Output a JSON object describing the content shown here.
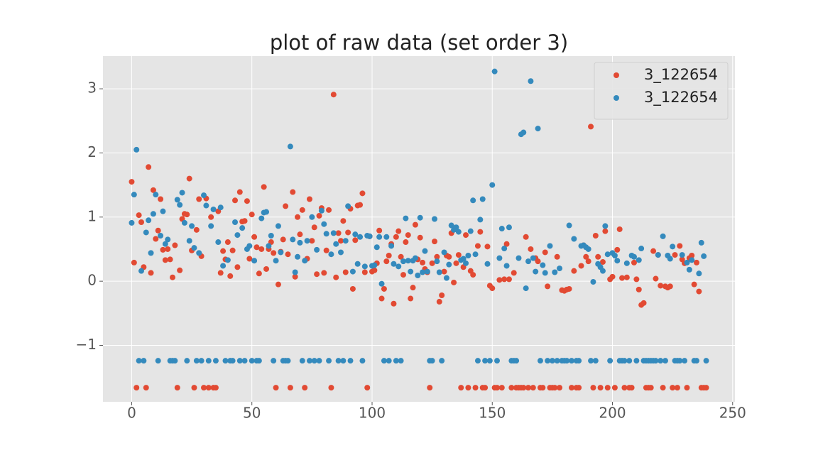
{
  "chart_data": {
    "type": "scatter",
    "title": "plot of raw data (set order 3)",
    "xlim": [
      -11.95,
      250.95
    ],
    "ylim": [
      -1.88,
      3.51
    ],
    "xticks": [
      0,
      50,
      100,
      150,
      200,
      250
    ],
    "yticks": [
      {
        "value": -1,
        "label": "−1"
      },
      0,
      1,
      2,
      3
    ],
    "grid": true,
    "legend_position": "upper right",
    "x": [
      0,
      1,
      2,
      3,
      4,
      5,
      6,
      7,
      8,
      9,
      10,
      11,
      12,
      13,
      14,
      15,
      16,
      17,
      18,
      19,
      20,
      21,
      22,
      23,
      24,
      25,
      26,
      27,
      28,
      29,
      30,
      31,
      32,
      33,
      34,
      35,
      36,
      37,
      38,
      39,
      40,
      41,
      42,
      43,
      44,
      45,
      46,
      47,
      48,
      49,
      50,
      51,
      52,
      53,
      54,
      55,
      56,
      57,
      58,
      59,
      60,
      61,
      62,
      63,
      64,
      65,
      66,
      67,
      68,
      69,
      70,
      71,
      72,
      73,
      74,
      75,
      76,
      77,
      78,
      79,
      80,
      81,
      82,
      83,
      84,
      85,
      86,
      87,
      88,
      89,
      90,
      91,
      92,
      93,
      94,
      95,
      96,
      97,
      98,
      99,
      100,
      101,
      102,
      103,
      104,
      105,
      106,
      107,
      108,
      109,
      110,
      111,
      112,
      113,
      114,
      115,
      116,
      117,
      118,
      119,
      120,
      121,
      122,
      123,
      124,
      125,
      126,
      127,
      128,
      129,
      130,
      131,
      132,
      133,
      134,
      135,
      136,
      137,
      138,
      139,
      140,
      141,
      142,
      143,
      144,
      145,
      146,
      147,
      148,
      149,
      150,
      151,
      152,
      153,
      154,
      155,
      156,
      157,
      158,
      159,
      160,
      161,
      162,
      163,
      164,
      165,
      166,
      167,
      168,
      169,
      170,
      171,
      172,
      173,
      174,
      175,
      176,
      177,
      178,
      179,
      180,
      181,
      182,
      183,
      184,
      185,
      186,
      187,
      188,
      189,
      190,
      191,
      192,
      193,
      194,
      195,
      196,
      197,
      198,
      199,
      200,
      201,
      202,
      203,
      204,
      205,
      206,
      207,
      208,
      209,
      210,
      211,
      212,
      213,
      214,
      215,
      216,
      217,
      218,
      219,
      220,
      221,
      222,
      223,
      224,
      225,
      226,
      227,
      228,
      229,
      230,
      231,
      232,
      233,
      234,
      235,
      236,
      237,
      238,
      239
    ],
    "series": [
      {
        "name": "3_122654",
        "color": "#e24a33",
        "values": [
          1.55,
          0.29,
          -1.66,
          1.03,
          0.92,
          0.22,
          -1.66,
          1.78,
          0.13,
          1.42,
          0.66,
          0.79,
          1.28,
          0.49,
          0.33,
          0.5,
          0.34,
          0.06,
          0.56,
          -1.66,
          0.17,
          0.97,
          1.05,
          1.04,
          1.6,
          0.48,
          -1.66,
          0.8,
          1.28,
          0.39,
          -1.66,
          1.29,
          -1.66,
          1.0,
          -1.66,
          -1.66,
          1.09,
          0.13,
          0.47,
          0.34,
          0.61,
          0.08,
          0.48,
          1.26,
          0.22,
          1.39,
          0.93,
          0.94,
          1.25,
          0.35,
          1.04,
          0.69,
          0.53,
          0.12,
          0.5,
          1.47,
          0.19,
          0.5,
          0.61,
          0.44,
          -1.66,
          -0.05,
          0.46,
          0.65,
          1.17,
          0.42,
          -1.66,
          1.39,
          0.07,
          1.0,
          0.73,
          1.11,
          -1.66,
          0.35,
          1.28,
          0.63,
          0.84,
          0.11,
          1.02,
          1.14,
          0.13,
          0.48,
          1.11,
          -1.66,
          2.91,
          0.06,
          0.75,
          0.63,
          0.94,
          0.14,
          0.76,
          1.13,
          -0.12,
          0.64,
          1.18,
          1.19,
          1.37,
          0.14,
          -1.66,
          0.7,
          0.15,
          0.17,
          0.28,
          0.79,
          -0.27,
          -0.12,
          0.31,
          0.4,
          0.58,
          -0.35,
          0.69,
          0.78,
          0.38,
          0.1,
          0.61,
          0.72,
          -0.27,
          -0.1,
          0.88,
          0.34,
          0.68,
          0.29,
          0.19,
          0.14,
          -1.66,
          0.28,
          0.62,
          0.38,
          -0.32,
          -0.22,
          0.15,
          0.4,
          0.38,
          0.75,
          -0.02,
          0.28,
          0.41,
          -1.66,
          0.22,
          0.72,
          -1.66,
          0.16,
          0.1,
          -1.66,
          0.55,
          0.77,
          -1.66,
          -1.66,
          0.54,
          -0.07,
          -0.11,
          -1.66,
          -1.66,
          0.02,
          -1.66,
          0.03,
          0.58,
          0.03,
          -1.66,
          0.13,
          -1.66,
          -1.66,
          -1.66,
          -1.66,
          0.69,
          -1.66,
          0.5,
          -1.66,
          0.36,
          0.31,
          -1.66,
          -1.66,
          0.45,
          -0.08,
          -1.66,
          -1.66,
          -1.66,
          0.38,
          -1.66,
          -0.14,
          -0.15,
          -0.13,
          -0.12,
          -1.66,
          0.16,
          -1.66,
          -1.66,
          0.24,
          0.56,
          0.38,
          0.31,
          2.41,
          -1.66,
          0.71,
          0.38,
          -1.66,
          0.3,
          0.78,
          -1.66,
          0.03,
          0.07,
          -1.66,
          0.49,
          0.81,
          0.05,
          -1.66,
          0.06,
          -1.66,
          -1.66,
          0.29,
          0.03,
          -0.13,
          -0.37,
          -0.34,
          -1.66,
          -1.66,
          -1.66,
          0.47,
          0.04,
          0.41,
          -0.07,
          -1.66,
          -0.08,
          -0.1,
          -0.08,
          -1.66,
          0.41,
          -1.66,
          0.55,
          0.34,
          0.28,
          -1.66,
          0.36,
          0.4,
          -0.05,
          0.29,
          -0.16,
          -1.66,
          -1.66,
          -1.66
        ]
      },
      {
        "name": "3_122654",
        "color": "#348abd",
        "values": [
          0.91,
          1.35,
          2.05,
          -1.24,
          0.16,
          -1.24,
          0.76,
          0.95,
          0.44,
          1.05,
          1.35,
          -1.24,
          0.71,
          1.09,
          0.58,
          0.65,
          -1.24,
          -1.24,
          -1.24,
          1.27,
          1.19,
          1.38,
          0.91,
          -1.24,
          0.63,
          0.86,
          0.52,
          -1.24,
          0.44,
          -1.24,
          1.34,
          1.18,
          -1.24,
          0.86,
          1.12,
          -1.24,
          0.61,
          1.15,
          0.24,
          -1.24,
          0.33,
          -1.24,
          -1.24,
          0.92,
          0.72,
          -1.24,
          0.83,
          -1.24,
          0.5,
          0.55,
          -1.24,
          0.32,
          -1.24,
          -1.24,
          0.98,
          1.07,
          1.08,
          0.55,
          0.71,
          -1.24,
          0.32,
          0.86,
          0.45,
          -1.24,
          -1.24,
          -1.24,
          2.1,
          0.65,
          0.14,
          0.38,
          0.6,
          -1.24,
          0.32,
          0.63,
          -1.24,
          1.0,
          -1.24,
          0.49,
          -1.24,
          1.1,
          0.89,
          0.74,
          -1.24,
          0.42,
          0.75,
          0.58,
          -1.24,
          0.45,
          -1.24,
          0.63,
          1.17,
          -1.24,
          0.15,
          0.73,
          0.27,
          0.69,
          -1.24,
          0.23,
          0.71,
          0.7,
          0.24,
          0.25,
          0.53,
          0.69,
          -0.04,
          -1.24,
          0.69,
          -1.24,
          0.55,
          0.27,
          -1.24,
          0.23,
          -1.24,
          0.31,
          0.98,
          0.32,
          0.15,
          0.32,
          0.36,
          0.09,
          0.99,
          0.14,
          0.47,
          0.15,
          -1.24,
          -1.24,
          0.97,
          0.31,
          0.14,
          -1.24,
          0.45,
          0.05,
          0.26,
          0.87,
          0.8,
          0.84,
          0.77,
          0.33,
          0.35,
          0.28,
          0.4,
          0.78,
          1.26,
          0.42,
          -1.24,
          0.96,
          1.28,
          -1.24,
          0.27,
          -1.24,
          1.5,
          3.27,
          -1.24,
          0.36,
          0.82,
          0.51,
          0.24,
          0.84,
          -1.24,
          -1.24,
          -1.24,
          0.36,
          2.29,
          2.32,
          -0.11,
          0.31,
          3.12,
          0.36,
          0.15,
          2.38,
          -1.24,
          0.25,
          0.13,
          -1.24,
          0.55,
          -1.24,
          0.14,
          -1.24,
          0.2,
          -1.24,
          -1.24,
          -1.24,
          0.87,
          -1.24,
          0.66,
          -1.24,
          -1.24,
          0.55,
          0.56,
          0.53,
          0.5,
          -1.24,
          -0.01,
          -1.24,
          0.27,
          0.22,
          0.16,
          0.86,
          0.42,
          -1.24,
          0.44,
          0.4,
          0.32,
          -1.24,
          -1.24,
          -1.24,
          0.28,
          -1.24,
          0.4,
          0.38,
          -1.24,
          0.33,
          0.51,
          -1.24,
          -1.24,
          -1.24,
          -1.24,
          -1.24,
          -1.24,
          0.41,
          -1.24,
          0.7,
          -1.24,
          0.4,
          0.35,
          0.54,
          -1.24,
          -1.24,
          -1.24,
          0.41,
          -1.24,
          0.29,
          0.18,
          0.33,
          -1.24,
          -1.24,
          0.12,
          0.6,
          0.39,
          -1.24
        ]
      }
    ]
  }
}
